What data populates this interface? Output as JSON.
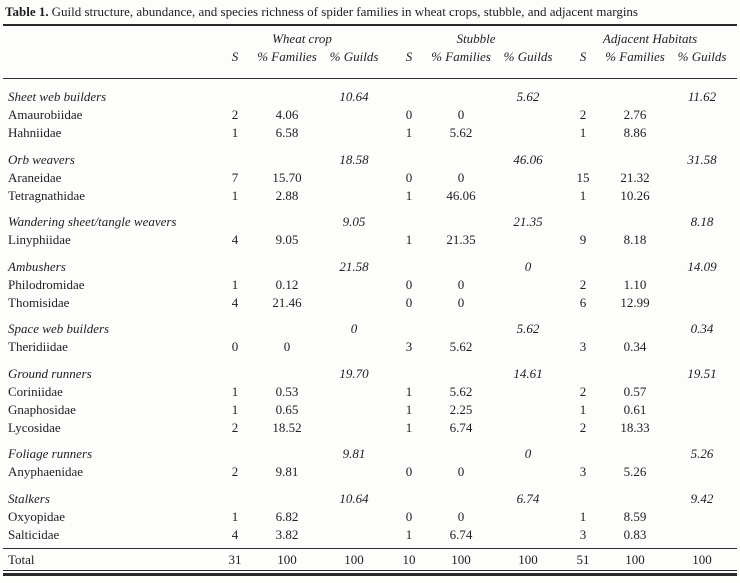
{
  "caption": {
    "label": "Table 1.",
    "text": "Guild structure, abundance, and species richness of spider families in wheat crops, stubble, and adjacent margins"
  },
  "columns": {
    "groups": [
      "Wheat crop",
      "Stubble",
      "Adjacent Habitats"
    ],
    "sub": [
      "S",
      "% Families",
      "% Guilds"
    ]
  },
  "rows": [
    {
      "type": "guild",
      "label": "Sheet web builders",
      "cells": [
        "",
        "",
        "10.64",
        "",
        "",
        "5.62",
        "",
        "",
        "11.62"
      ]
    },
    {
      "type": "family",
      "label": "Amaurobiidae",
      "cells": [
        "2",
        "4.06",
        "",
        "0",
        "0",
        "",
        "2",
        "2.76",
        ""
      ]
    },
    {
      "type": "family",
      "label": "Hahniidae",
      "cells": [
        "1",
        "6.58",
        "",
        "1",
        "5.62",
        "",
        "1",
        "8.86",
        ""
      ]
    },
    {
      "type": "guild",
      "label": "Orb weavers",
      "cells": [
        "",
        "",
        "18.58",
        "",
        "",
        "46.06",
        "",
        "",
        "31.58"
      ]
    },
    {
      "type": "family",
      "label": "Araneidae",
      "cells": [
        "7",
        "15.70",
        "",
        "0",
        "0",
        "",
        "15",
        "21.32",
        ""
      ]
    },
    {
      "type": "family",
      "label": "Tetragnathidae",
      "cells": [
        "1",
        "2.88",
        "",
        "1",
        "46.06",
        "",
        "1",
        "10.26",
        ""
      ]
    },
    {
      "type": "guild",
      "label": "Wandering sheet/tangle weavers",
      "cells": [
        "",
        "",
        "9.05",
        "",
        "",
        "21.35",
        "",
        "",
        "8.18"
      ]
    },
    {
      "type": "family",
      "label": "Linyphiidae",
      "cells": [
        "4",
        "9.05",
        "",
        "1",
        "21.35",
        "",
        "9",
        "8.18",
        ""
      ]
    },
    {
      "type": "guild",
      "label": "Ambushers",
      "cells": [
        "",
        "",
        "21.58",
        "",
        "",
        "0",
        "",
        "",
        "14.09"
      ]
    },
    {
      "type": "family",
      "label": "Philodromidae",
      "cells": [
        "1",
        "0.12",
        "",
        "0",
        "0",
        "",
        "2",
        "1.10",
        ""
      ]
    },
    {
      "type": "family",
      "label": "Thomisidae",
      "cells": [
        "4",
        "21.46",
        "",
        "0",
        "0",
        "",
        "6",
        "12.99",
        ""
      ]
    },
    {
      "type": "guild",
      "label": "Space web builders",
      "cells": [
        "",
        "",
        "0",
        "",
        "",
        "5.62",
        "",
        "",
        "0.34"
      ]
    },
    {
      "type": "family",
      "label": "Theridiidae",
      "cells": [
        "0",
        "0",
        "",
        "3",
        "5.62",
        "",
        "3",
        "0.34",
        ""
      ]
    },
    {
      "type": "guild",
      "label": "Ground runners",
      "cells": [
        "",
        "",
        "19.70",
        "",
        "",
        "14.61",
        "",
        "",
        "19.51"
      ]
    },
    {
      "type": "family",
      "label": "Coriniidae",
      "cells": [
        "1",
        "0.53",
        "",
        "1",
        "5.62",
        "",
        "2",
        "0.57",
        ""
      ]
    },
    {
      "type": "family",
      "label": "Gnaphosidae",
      "cells": [
        "1",
        "0.65",
        "",
        "1",
        "2.25",
        "",
        "1",
        "0.61",
        ""
      ]
    },
    {
      "type": "family",
      "label": "Lycosidae",
      "cells": [
        "2",
        "18.52",
        "",
        "1",
        "6.74",
        "",
        "2",
        "18.33",
        ""
      ]
    },
    {
      "type": "guild",
      "label": "Foliage runners",
      "cells": [
        "",
        "",
        "9.81",
        "",
        "",
        "0",
        "",
        "",
        "5.26"
      ]
    },
    {
      "type": "family",
      "label": "Anyphaenidae",
      "cells": [
        "2",
        "9.81",
        "",
        "0",
        "0",
        "",
        "3",
        "5.26",
        ""
      ]
    },
    {
      "type": "guild",
      "label": "Stalkers",
      "cells": [
        "",
        "",
        "10.64",
        "",
        "",
        "6.74",
        "",
        "",
        "9.42"
      ]
    },
    {
      "type": "family",
      "label": "Oxyopidae",
      "cells": [
        "1",
        "6.82",
        "",
        "0",
        "0",
        "",
        "1",
        "8.59",
        ""
      ]
    },
    {
      "type": "family",
      "label": "Salticidae",
      "cells": [
        "4",
        "3.82",
        "",
        "1",
        "6.74",
        "",
        "3",
        "0.83",
        ""
      ]
    },
    {
      "type": "total",
      "label": "Total",
      "cells": [
        "31",
        "100",
        "100",
        "10",
        "100",
        "100",
        "51",
        "100",
        "100"
      ]
    }
  ]
}
